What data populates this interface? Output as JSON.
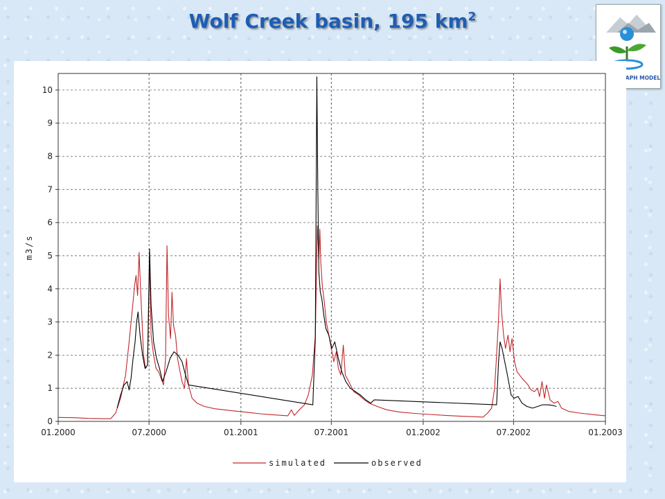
{
  "slide": {
    "title": "Wolf Creek basin, 195 km",
    "title_superscript": "2"
  },
  "logo": {
    "text": "HYDROGRAPH MODEL",
    "colors": {
      "water": "#2a8fd6",
      "leaf": "#3a9a2a",
      "mountain": "#9aa6ad",
      "text": "#2b5aa8"
    }
  },
  "chart_data": {
    "type": "line",
    "xlabel": "",
    "ylabel": "m3/s",
    "ylim": [
      0,
      10.5
    ],
    "yticks": [
      0,
      1,
      2,
      3,
      4,
      5,
      6,
      7,
      8,
      9,
      10
    ],
    "xlim": [
      "2000-01-01",
      "2003-01-01"
    ],
    "xtick_labels": [
      "01.2000",
      "07.2000",
      "01.2001",
      "07.2001",
      "01.2002",
      "07.2002",
      "01.2003"
    ],
    "grid": true,
    "legend_position": "bottom",
    "series": [
      {
        "name": "simulated",
        "color": "#c0262b",
        "points": [
          [
            "2000-01-01",
            0.12
          ],
          [
            "2000-02-01",
            0.11
          ],
          [
            "2000-03-01",
            0.09
          ],
          [
            "2000-04-01",
            0.08
          ],
          [
            "2000-04-15",
            0.08
          ],
          [
            "2000-04-25",
            0.25
          ],
          [
            "2000-05-05",
            0.7
          ],
          [
            "2000-05-15",
            1.4
          ],
          [
            "2000-05-22",
            2.4
          ],
          [
            "2000-05-28",
            3.3
          ],
          [
            "2000-06-02",
            4.1
          ],
          [
            "2000-06-05",
            4.4
          ],
          [
            "2000-06-08",
            3.8
          ],
          [
            "2000-06-11",
            5.1
          ],
          [
            "2000-06-14",
            4.0
          ],
          [
            "2000-06-17",
            3.0
          ],
          [
            "2000-06-20",
            2.0
          ],
          [
            "2000-06-24",
            1.6
          ],
          [
            "2000-06-28",
            1.7
          ],
          [
            "2000-07-02",
            4.9
          ],
          [
            "2000-07-05",
            2.6
          ],
          [
            "2000-07-10",
            2.0
          ],
          [
            "2000-07-15",
            1.6
          ],
          [
            "2000-07-20",
            1.5
          ],
          [
            "2000-07-25",
            1.3
          ],
          [
            "2000-07-30",
            1.1
          ],
          [
            "2000-08-03",
            1.9
          ],
          [
            "2000-08-06",
            5.3
          ],
          [
            "2000-08-09",
            3.2
          ],
          [
            "2000-08-13",
            2.5
          ],
          [
            "2000-08-16",
            3.9
          ],
          [
            "2000-08-19",
            2.9
          ],
          [
            "2000-08-23",
            2.6
          ],
          [
            "2000-08-27",
            1.9
          ],
          [
            "2000-09-01",
            1.5
          ],
          [
            "2000-09-05",
            1.2
          ],
          [
            "2000-09-10",
            1.0
          ],
          [
            "2000-09-14",
            1.9
          ],
          [
            "2000-09-18",
            1.1
          ],
          [
            "2000-09-25",
            0.7
          ],
          [
            "2000-10-05",
            0.55
          ],
          [
            "2000-10-20",
            0.45
          ],
          [
            "2000-11-10",
            0.38
          ],
          [
            "2000-12-15",
            0.32
          ],
          [
            "2001-01-15",
            0.27
          ],
          [
            "2001-02-15",
            0.22
          ],
          [
            "2001-03-15",
            0.19
          ],
          [
            "2001-04-05",
            0.17
          ],
          [
            "2001-04-12",
            0.35
          ],
          [
            "2001-04-18",
            0.18
          ],
          [
            "2001-04-28",
            0.35
          ],
          [
            "2001-05-08",
            0.5
          ],
          [
            "2001-05-16",
            0.8
          ],
          [
            "2001-05-24",
            1.4
          ],
          [
            "2001-05-30",
            2.6
          ],
          [
            "2001-06-03",
            5.9
          ],
          [
            "2001-06-06",
            4.9
          ],
          [
            "2001-06-08",
            5.8
          ],
          [
            "2001-06-10",
            4.8
          ],
          [
            "2001-06-13",
            4.1
          ],
          [
            "2001-06-17",
            3.6
          ],
          [
            "2001-06-21",
            3.0
          ],
          [
            "2001-06-26",
            2.6
          ],
          [
            "2001-07-01",
            2.2
          ],
          [
            "2001-07-06",
            1.8
          ],
          [
            "2001-07-11",
            2.1
          ],
          [
            "2001-07-15",
            1.6
          ],
          [
            "2001-07-20",
            1.4
          ],
          [
            "2001-07-25",
            2.3
          ],
          [
            "2001-07-29",
            1.4
          ],
          [
            "2001-08-05",
            1.2
          ],
          [
            "2001-08-15",
            0.9
          ],
          [
            "2001-08-25",
            0.8
          ],
          [
            "2001-09-05",
            0.65
          ],
          [
            "2001-09-15",
            0.55
          ],
          [
            "2001-10-01",
            0.45
          ],
          [
            "2001-10-20",
            0.35
          ],
          [
            "2001-11-15",
            0.28
          ],
          [
            "2001-12-15",
            0.24
          ],
          [
            "2002-01-15",
            0.21
          ],
          [
            "2002-02-15",
            0.18
          ],
          [
            "2002-03-15",
            0.16
          ],
          [
            "2002-04-15",
            0.14
          ],
          [
            "2002-05-01",
            0.13
          ],
          [
            "2002-05-10",
            0.25
          ],
          [
            "2002-05-18",
            0.4
          ],
          [
            "2002-05-24",
            1.0
          ],
          [
            "2002-05-28",
            2.0
          ],
          [
            "2002-06-01",
            3.1
          ],
          [
            "2002-06-04",
            4.3
          ],
          [
            "2002-06-07",
            3.3
          ],
          [
            "2002-06-11",
            2.6
          ],
          [
            "2002-06-15",
            2.2
          ],
          [
            "2002-06-20",
            2.6
          ],
          [
            "2002-06-24",
            2.1
          ],
          [
            "2002-06-28",
            2.5
          ],
          [
            "2002-07-03",
            1.8
          ],
          [
            "2002-07-08",
            1.5
          ],
          [
            "2002-07-13",
            1.4
          ],
          [
            "2002-07-18",
            1.3
          ],
          [
            "2002-07-24",
            1.2
          ],
          [
            "2002-07-30",
            1.1
          ],
          [
            "2002-08-05",
            0.95
          ],
          [
            "2002-08-12",
            0.9
          ],
          [
            "2002-08-18",
            1.0
          ],
          [
            "2002-08-22",
            0.75
          ],
          [
            "2002-08-27",
            1.2
          ],
          [
            "2002-09-01",
            0.7
          ],
          [
            "2002-09-05",
            1.1
          ],
          [
            "2002-09-12",
            0.65
          ],
          [
            "2002-09-20",
            0.55
          ],
          [
            "2002-09-28",
            0.6
          ],
          [
            "2002-10-05",
            0.4
          ],
          [
            "2002-10-20",
            0.3
          ],
          [
            "2002-11-10",
            0.25
          ],
          [
            "2002-12-10",
            0.2
          ],
          [
            "2003-01-01",
            0.17
          ]
        ]
      },
      {
        "name": "observed",
        "color": "#000000",
        "points": [
          [
            "2000-04-28",
            0.4
          ],
          [
            "2000-05-05",
            0.8
          ],
          [
            "2000-05-12",
            1.1
          ],
          [
            "2000-05-18",
            1.2
          ],
          [
            "2000-05-22",
            0.95
          ],
          [
            "2000-05-26",
            1.3
          ],
          [
            "2000-05-30",
            1.9
          ],
          [
            "2000-06-03",
            2.4
          ],
          [
            "2000-06-06",
            3.0
          ],
          [
            "2000-06-09",
            3.3
          ],
          [
            "2000-06-13",
            2.6
          ],
          [
            "2000-06-18",
            2.0
          ],
          [
            "2000-06-23",
            1.6
          ],
          [
            "2000-06-28",
            1.7
          ],
          [
            "2000-07-02",
            5.2
          ],
          [
            "2000-07-05",
            3.5
          ],
          [
            "2000-07-10",
            2.4
          ],
          [
            "2000-07-16",
            1.9
          ],
          [
            "2000-07-22",
            1.6
          ],
          [
            "2000-07-28",
            1.2
          ],
          [
            "2000-08-04",
            1.5
          ],
          [
            "2000-08-12",
            1.9
          ],
          [
            "2000-08-20",
            2.1
          ],
          [
            "2000-08-28",
            2.0
          ],
          [
            "2000-09-05",
            1.8
          ],
          [
            "2000-09-12",
            1.4
          ],
          [
            "2000-09-18",
            1.1
          ],
          [
            "2001-05-25",
            0.5
          ],
          [
            "2001-05-30",
            2.5
          ],
          [
            "2001-06-02",
            10.4
          ],
          [
            "2001-06-04",
            7.0
          ],
          [
            "2001-06-06",
            4.5
          ],
          [
            "2001-06-09",
            3.9
          ],
          [
            "2001-06-12",
            3.7
          ],
          [
            "2001-06-16",
            3.2
          ],
          [
            "2001-06-20",
            2.8
          ],
          [
            "2001-06-26",
            2.6
          ],
          [
            "2001-07-02",
            2.2
          ],
          [
            "2001-07-08",
            2.4
          ],
          [
            "2001-07-15",
            1.9
          ],
          [
            "2001-07-22",
            1.5
          ],
          [
            "2001-07-30",
            1.2
          ],
          [
            "2001-08-08",
            1.0
          ],
          [
            "2001-08-18",
            0.9
          ],
          [
            "2001-08-28",
            0.8
          ],
          [
            "2001-09-08",
            0.65
          ],
          [
            "2001-09-18",
            0.55
          ],
          [
            "2001-09-25",
            0.65
          ],
          [
            "2002-05-28",
            0.5
          ],
          [
            "2002-06-01",
            1.8
          ],
          [
            "2002-06-04",
            2.4
          ],
          [
            "2002-06-08",
            2.2
          ],
          [
            "2002-06-12",
            1.9
          ],
          [
            "2002-06-16",
            1.6
          ],
          [
            "2002-06-20",
            1.3
          ],
          [
            "2002-06-26",
            0.8
          ],
          [
            "2002-07-02",
            0.7
          ],
          [
            "2002-07-10",
            0.75
          ],
          [
            "2002-07-18",
            0.55
          ],
          [
            "2002-07-28",
            0.45
          ],
          [
            "2002-08-08",
            0.4
          ],
          [
            "2002-08-18",
            0.45
          ],
          [
            "2002-08-28",
            0.5
          ],
          [
            "2002-09-08",
            0.5
          ],
          [
            "2002-09-18",
            0.48
          ],
          [
            "2002-09-25",
            0.45
          ]
        ]
      }
    ]
  }
}
